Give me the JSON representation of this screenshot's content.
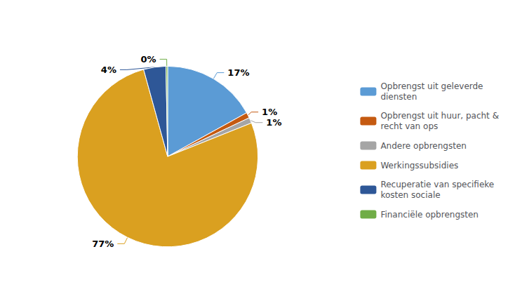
{
  "chart_data": {
    "type": "pie",
    "categories": [
      "Opbrengst uit geleverde\ndiensten",
      "Opbrengst uit huur, pacht &\nrecht van ops",
      "Andere opbrengsten",
      "Werkingssubsidies",
      "Recuperatie van specifieke\nkosten sociale",
      "Financiële opbrengsten"
    ],
    "values": [
      17,
      1,
      1,
      77,
      4,
      0.3
    ],
    "value_labels": [
      "17%",
      "1%",
      "1%",
      "77%",
      "4%",
      "0%"
    ],
    "colors": [
      "#5B9BD5",
      "#C55A11",
      "#A5A5A5",
      "#DAA020",
      "#2E5797",
      "#70AD47"
    ],
    "data_labels": true,
    "legend": "right"
  }
}
